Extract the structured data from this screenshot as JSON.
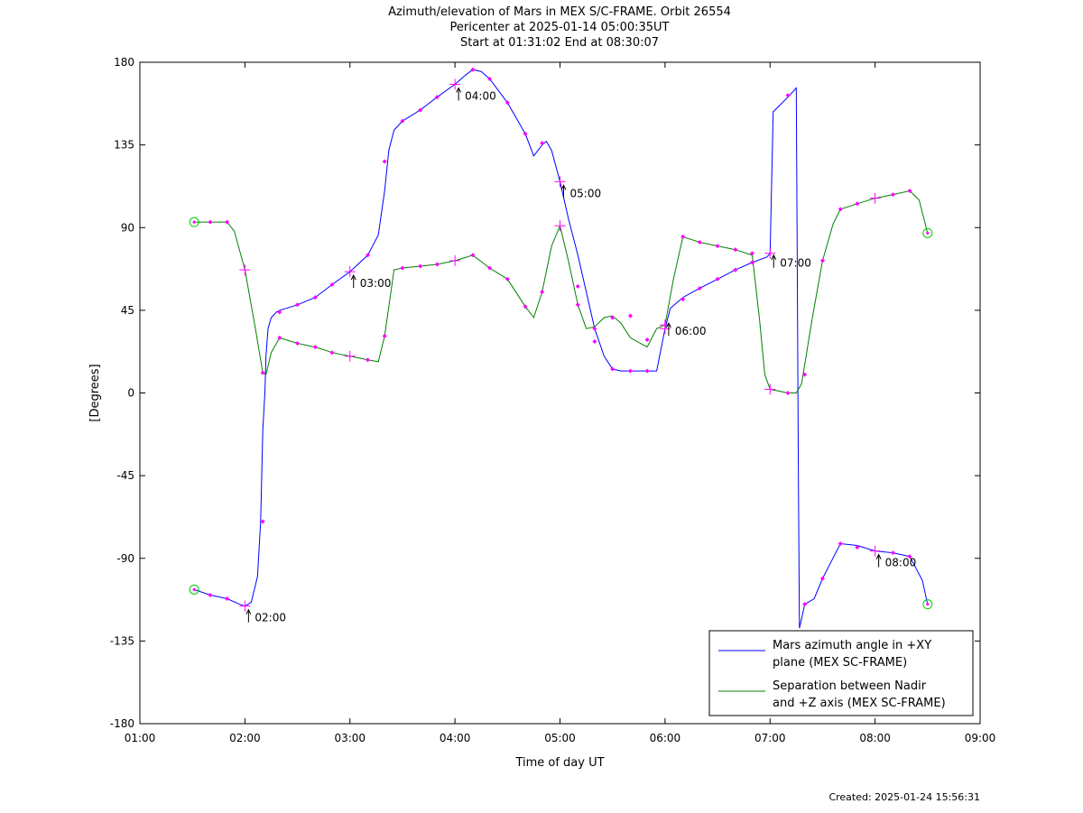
{
  "header": {
    "title_line1": "Azimuth/elevation of Mars in MEX S/C-FRAME.  Orbit 26554",
    "title_line2": "Pericenter at 2025-01-14 05:00:35UT",
    "title_line3": "Start at 01:31:02 End at 08:30:07"
  },
  "footer": {
    "created": "Created: 2025-01-24 15:56:31"
  },
  "chart_data": {
    "type": "line",
    "title": "Azimuth/elevation of Mars in MEX S/C-FRAME.  Orbit 26554",
    "subtitle": [
      "Pericenter at 2025-01-14 05:00:35UT",
      "Start at 01:31:02 End at 08:30:07"
    ],
    "xlabel": "Time of day UT",
    "ylabel": "[Degrees]",
    "xlim": [
      1,
      9
    ],
    "ylim": [
      -180,
      180
    ],
    "x_ticks": [
      1,
      2,
      3,
      4,
      5,
      6,
      7,
      8,
      9
    ],
    "x_tick_labels": [
      "01:00",
      "02:00",
      "03:00",
      "04:00",
      "05:00",
      "06:00",
      "07:00",
      "08:00",
      "09:00"
    ],
    "y_ticks": [
      -180,
      -135,
      -90,
      -45,
      0,
      45,
      90,
      135,
      180
    ],
    "y_tick_labels": [
      "-180",
      "-135",
      "-90",
      "-45",
      "0",
      "45",
      "90",
      "135",
      "180"
    ],
    "grid": false,
    "legend_position": "bottom-right",
    "hour_annotations": [
      {
        "label": "02:00",
        "x": 2.0,
        "y": -116
      },
      {
        "label": "03:00",
        "x": 3.0,
        "y": 66
      },
      {
        "label": "04:00",
        "x": 4.0,
        "y": 168
      },
      {
        "label": "05:00",
        "x": 5.0,
        "y": 115
      },
      {
        "label": "06:00",
        "x": 6.0,
        "y": 40
      },
      {
        "label": "07:00",
        "x": 7.0,
        "y": 77
      },
      {
        "label": "08:00",
        "x": 8.0,
        "y": -86
      }
    ],
    "series": [
      {
        "name": "Mars azimuth angle in +XY plane (MEX SC-FRAME)",
        "legend_lines": [
          "Mars azimuth angle in +XY",
          "plane (MEX SC-FRAME)"
        ],
        "color": "#0000ff",
        "x": [
          1.517,
          1.67,
          1.83,
          1.95,
          2.0,
          2.06,
          2.12,
          2.15,
          2.17,
          2.19,
          2.2,
          2.22,
          2.25,
          2.3,
          2.33,
          2.5,
          2.67,
          2.83,
          3.0,
          3.17,
          3.27,
          3.33,
          3.37,
          3.42,
          3.5,
          3.67,
          3.83,
          4.0,
          4.1,
          4.17,
          4.25,
          4.33,
          4.5,
          4.67,
          4.75,
          4.83,
          4.87,
          4.92,
          5.0,
          5.08,
          5.17,
          5.25,
          5.33,
          5.42,
          5.5,
          5.58,
          5.67,
          5.83,
          5.92,
          6.0,
          6.05,
          6.17,
          6.33,
          6.5,
          6.67,
          6.83,
          6.97,
          7.0,
          7.03,
          7.17,
          7.25,
          7.26,
          7.27,
          7.28,
          7.33,
          7.42,
          7.5,
          7.67,
          7.83,
          8.0,
          8.17,
          8.33,
          8.45,
          8.5
        ],
        "y": [
          -107,
          -110,
          -112,
          -115,
          -116,
          -114,
          -100,
          -70,
          -20,
          0,
          20,
          35,
          41,
          44,
          45,
          48,
          52,
          59,
          66,
          75,
          86,
          110,
          132,
          143,
          148,
          154,
          161,
          168,
          173,
          176,
          175,
          171,
          158,
          141,
          129,
          135,
          137,
          132,
          115,
          95,
          75,
          55,
          35,
          20,
          13,
          12,
          12,
          12,
          12,
          35,
          46,
          52,
          57,
          62,
          67,
          71,
          74,
          76,
          153,
          161,
          166,
          60,
          -50,
          -128,
          -115,
          -112,
          -101,
          -82,
          -83,
          -86,
          -87,
          -89,
          -102,
          -115
        ],
        "markers": [
          [
            1.67,
            -110
          ],
          [
            1.83,
            -112
          ],
          [
            2.17,
            -70
          ],
          [
            2.33,
            44
          ],
          [
            2.5,
            48
          ],
          [
            2.67,
            52
          ],
          [
            2.83,
            59
          ],
          [
            3.17,
            75
          ],
          [
            3.33,
            126
          ],
          [
            3.5,
            148
          ],
          [
            3.67,
            154
          ],
          [
            3.83,
            161
          ],
          [
            4.17,
            176
          ],
          [
            4.33,
            171
          ],
          [
            4.5,
            158
          ],
          [
            4.67,
            141
          ],
          [
            4.83,
            136
          ],
          [
            5.17,
            58
          ],
          [
            5.33,
            28
          ],
          [
            5.5,
            13
          ],
          [
            5.67,
            12
          ],
          [
            5.83,
            12
          ],
          [
            6.17,
            51
          ],
          [
            6.33,
            57
          ],
          [
            6.5,
            62
          ],
          [
            6.67,
            67
          ],
          [
            6.83,
            71
          ],
          [
            7.17,
            162
          ],
          [
            7.33,
            -115
          ],
          [
            7.5,
            -101
          ],
          [
            7.67,
            -82
          ],
          [
            7.83,
            -84
          ],
          [
            8.17,
            -87
          ],
          [
            8.33,
            -89
          ]
        ],
        "start_point": [
          1.517,
          -107
        ],
        "end_point": [
          8.5,
          -115
        ]
      },
      {
        "name": "Separation between Nadir and +Z axis (MEX SC-FRAME)",
        "legend_lines": [
          "Separation between Nadir",
          "and +Z axis (MEX SC-FRAME)"
        ],
        "color": "#008000",
        "x": [
          1.517,
          1.67,
          1.83,
          1.9,
          2.0,
          2.1,
          2.17,
          2.2,
          2.25,
          2.33,
          2.5,
          2.67,
          2.83,
          3.0,
          3.17,
          3.27,
          3.33,
          3.42,
          3.5,
          3.67,
          3.83,
          4.0,
          4.17,
          4.33,
          4.5,
          4.67,
          4.75,
          4.83,
          4.92,
          5.0,
          5.08,
          5.17,
          5.25,
          5.33,
          5.42,
          5.5,
          5.58,
          5.67,
          5.83,
          5.92,
          6.0,
          6.08,
          6.17,
          6.33,
          6.5,
          6.67,
          6.83,
          6.9,
          6.95,
          7.0,
          7.17,
          7.25,
          7.3,
          7.4,
          7.5,
          7.6,
          7.67,
          7.83,
          8.0,
          8.17,
          8.33,
          8.42,
          8.5
        ],
        "y": [
          93,
          93,
          93,
          88,
          67,
          35,
          11,
          10,
          22,
          30,
          27,
          25,
          22,
          20,
          18,
          17,
          31,
          67,
          68,
          69,
          70,
          72,
          75,
          68,
          62,
          47,
          41,
          55,
          80,
          91,
          72,
          48,
          35,
          36,
          41,
          42,
          38,
          30,
          25,
          35,
          37,
          62,
          85,
          82,
          80,
          78,
          75,
          40,
          10,
          2,
          0,
          0,
          5,
          40,
          72,
          92,
          100,
          103,
          106,
          108,
          110,
          105,
          87
        ],
        "markers": [
          [
            1.67,
            93
          ],
          [
            1.83,
            93
          ],
          [
            2.17,
            11
          ],
          [
            2.33,
            30
          ],
          [
            2.5,
            27
          ],
          [
            2.67,
            25
          ],
          [
            2.83,
            22
          ],
          [
            3.17,
            18
          ],
          [
            3.33,
            31
          ],
          [
            3.5,
            68
          ],
          [
            3.67,
            69
          ],
          [
            3.83,
            70
          ],
          [
            4.17,
            75
          ],
          [
            4.33,
            68
          ],
          [
            4.5,
            62
          ],
          [
            4.67,
            47
          ],
          [
            4.83,
            55
          ],
          [
            5.17,
            48
          ],
          [
            5.33,
            35
          ],
          [
            5.5,
            41
          ],
          [
            5.67,
            42
          ],
          [
            5.83,
            29
          ],
          [
            6.17,
            85
          ],
          [
            6.33,
            82
          ],
          [
            6.5,
            80
          ],
          [
            6.67,
            78
          ],
          [
            6.83,
            76
          ],
          [
            7.17,
            0
          ],
          [
            7.33,
            10
          ],
          [
            7.5,
            72
          ],
          [
            7.67,
            100
          ],
          [
            7.83,
            103
          ],
          [
            8.17,
            108
          ],
          [
            8.33,
            110
          ]
        ],
        "start_point": [
          1.517,
          93
        ],
        "end_point": [
          8.5,
          87
        ]
      }
    ]
  }
}
